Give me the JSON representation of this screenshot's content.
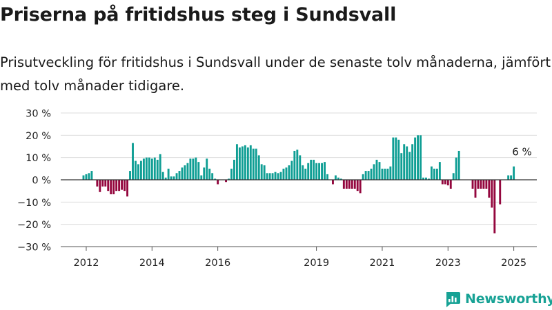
{
  "title": "Priserna på fritidshus steg i Sundsvall",
  "subtitle": "Prisutveckling för fritidshus i Sundsvall under de senaste tolv månaderna, jämfört med tolv månader tidigare.",
  "brand": {
    "name": "Newsworthy",
    "icon": "newsworthy-logo-icon"
  },
  "colors": {
    "positive": "#0f9e94",
    "negative": "#94073e",
    "grid": "#dcdcdc",
    "zero_line": "#333333",
    "brand": "#17a295"
  },
  "chart_data": {
    "type": "bar",
    "title": "Priserna på fritidshus steg i Sundsvall",
    "subtitle": "Prisutveckling för fritidshus i Sundsvall under de senaste tolv månaderna, jämfört med tolv månader tidigare.",
    "xlabel": "",
    "ylabel": "",
    "ylim": [
      -30,
      30
    ],
    "y_ticks": [
      30,
      20,
      10,
      0,
      -10,
      -20,
      -30
    ],
    "y_tick_labels": [
      "30 %",
      "20 %",
      "10 %",
      "0 %",
      "−10 %",
      "−20 %",
      "−30 %"
    ],
    "x_tick_labels": [
      "2012",
      "2014",
      "2016",
      "2019",
      "2021",
      "2023",
      "2025"
    ],
    "x_tick_dates": [
      "2012-01",
      "2014-01",
      "2016-01",
      "2019-01",
      "2021-01",
      "2023-01",
      "2025-01"
    ],
    "grid": true,
    "start_date": "2011-12",
    "end_date": "2025-04",
    "months": [
      "2011-12",
      "2012-01",
      "2012-02",
      "2012-03",
      "2012-04",
      "2012-05",
      "2012-06",
      "2012-07",
      "2012-08",
      "2012-09",
      "2012-10",
      "2012-11",
      "2012-12",
      "2013-01",
      "2013-02",
      "2013-03",
      "2013-04",
      "2013-05",
      "2013-06",
      "2013-07",
      "2013-08",
      "2013-09",
      "2013-10",
      "2013-11",
      "2013-12",
      "2014-01",
      "2014-02",
      "2014-03",
      "2014-04",
      "2014-05",
      "2014-06",
      "2014-07",
      "2014-08",
      "2014-09",
      "2014-10",
      "2014-11",
      "2014-12",
      "2015-01",
      "2015-02",
      "2015-03",
      "2015-04",
      "2015-05",
      "2015-06",
      "2015-07",
      "2015-08",
      "2015-09",
      "2015-10",
      "2015-11",
      "2015-12",
      "2016-01",
      "2016-02",
      "2016-03",
      "2016-04",
      "2016-05",
      "2016-06",
      "2016-07",
      "2016-08",
      "2016-09",
      "2016-10",
      "2016-11",
      "2016-12",
      "2017-01",
      "2017-02",
      "2017-03",
      "2017-04",
      "2017-05",
      "2017-06",
      "2017-07",
      "2017-08",
      "2017-09",
      "2017-10",
      "2017-11",
      "2017-12",
      "2018-01",
      "2018-02",
      "2018-03",
      "2018-04",
      "2018-05",
      "2018-06",
      "2018-07",
      "2018-08",
      "2018-09",
      "2018-10",
      "2018-11",
      "2018-12",
      "2019-01",
      "2019-02",
      "2019-03",
      "2019-04",
      "2019-05",
      "2019-06",
      "2019-07",
      "2019-08",
      "2019-09",
      "2019-10",
      "2019-11",
      "2019-12",
      "2020-01",
      "2020-02",
      "2020-03",
      "2020-04",
      "2020-05",
      "2020-06",
      "2020-07",
      "2020-08",
      "2020-09",
      "2020-10",
      "2020-11",
      "2020-12",
      "2021-01",
      "2021-02",
      "2021-03",
      "2021-04",
      "2021-05",
      "2021-06",
      "2021-07",
      "2021-08",
      "2021-09",
      "2021-10",
      "2021-11",
      "2021-12",
      "2022-01",
      "2022-02",
      "2022-03",
      "2022-04",
      "2022-05",
      "2022-06",
      "2022-07",
      "2022-08",
      "2022-09",
      "2022-10",
      "2022-11",
      "2022-12",
      "2023-01",
      "2023-02",
      "2023-03",
      "2023-04",
      "2023-05",
      "2023-06",
      "2023-07",
      "2023-08",
      "2023-09",
      "2023-10",
      "2023-11",
      "2023-12",
      "2024-01",
      "2024-02",
      "2024-03",
      "2024-04",
      "2024-05",
      "2024-06",
      "2024-07",
      "2024-08",
      "2024-09",
      "2024-10",
      "2024-11",
      "2024-12",
      "2025-01",
      "2025-02",
      "2025-03",
      "2025-04"
    ],
    "series": [
      {
        "values": [
          2,
          2.5,
          3,
          4,
          0,
          -3,
          -5.5,
          -3,
          -3,
          -5,
          -6.5,
          -6.5,
          -5,
          -5,
          -4.5,
          -5,
          -7.5,
          4,
          16.5,
          8.5,
          7,
          8.5,
          9.5,
          10,
          10,
          9.5,
          10,
          9,
          11.5,
          3.5,
          1,
          5,
          1.5,
          1.5,
          3,
          4,
          5.5,
          6.5,
          7.5,
          9.5,
          9.5,
          10,
          8,
          2,
          5.5,
          9.5,
          5,
          3,
          0.5,
          -2,
          0,
          null,
          -1,
          0.5,
          5,
          9,
          16,
          14.5,
          15,
          15.5,
          14.5,
          15.5,
          14,
          14,
          11,
          7,
          6.5,
          3,
          3,
          3,
          3.5,
          3,
          3.5,
          5,
          5.5,
          6.5,
          8.5,
          13,
          13.5,
          11,
          6.5,
          5,
          7.5,
          9,
          9,
          7.5,
          7.5,
          7.5,
          8,
          2.5,
          null,
          -2,
          2,
          1,
          0.5,
          -4,
          -4,
          -4,
          -4,
          -4,
          -5,
          -6,
          2.5,
          4,
          4,
          5,
          7,
          9,
          8,
          5,
          5,
          5,
          6,
          19,
          19,
          18,
          12,
          16,
          15,
          12.5,
          16,
          19,
          20,
          20,
          1,
          1,
          0.5,
          6,
          5,
          5,
          8,
          -2,
          -2,
          -2.5,
          -4,
          3,
          10,
          13,
          null,
          null,
          null,
          null,
          -4,
          -8,
          -4,
          -4,
          -4,
          -4,
          -8,
          -12.5,
          -24,
          0,
          -11,
          null,
          null,
          2,
          2,
          6
        ]
      }
    ],
    "annotations": [
      {
        "date": "2025-04",
        "value": 6,
        "text": "6 %"
      }
    ]
  }
}
